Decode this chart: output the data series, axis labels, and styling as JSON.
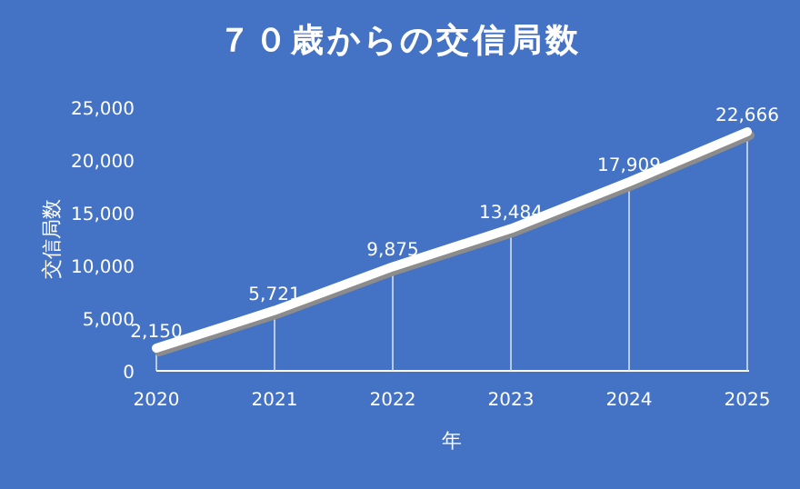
{
  "chart_data": {
    "type": "line",
    "title": "７０歳からの交信局数",
    "xlabel": "年",
    "ylabel": "交信局数",
    "categories": [
      "2020",
      "2021",
      "2022",
      "2023",
      "2024",
      "2025"
    ],
    "series": [
      {
        "color": "#ffffff",
        "values": [
          2150,
          5721,
          9875,
          13484,
          17909,
          22666
        ],
        "value_labels": [
          "2,150",
          "5,721",
          "9,875",
          "13,484",
          "17,909",
          "22,666"
        ]
      }
    ],
    "ylim": [
      0,
      25000
    ],
    "yticks": [
      0,
      {
        "value": 5000,
        "label": "5,000"
      },
      {
        "value": 10000,
        "label": "10,000"
      },
      {
        "value": 15000,
        "label": "15,000"
      },
      {
        "value": 20000,
        "label": "20,000"
      },
      {
        "value": 25000,
        "label": "25,000"
      }
    ],
    "grid": "x",
    "marker": "none",
    "line_style": "solid"
  }
}
